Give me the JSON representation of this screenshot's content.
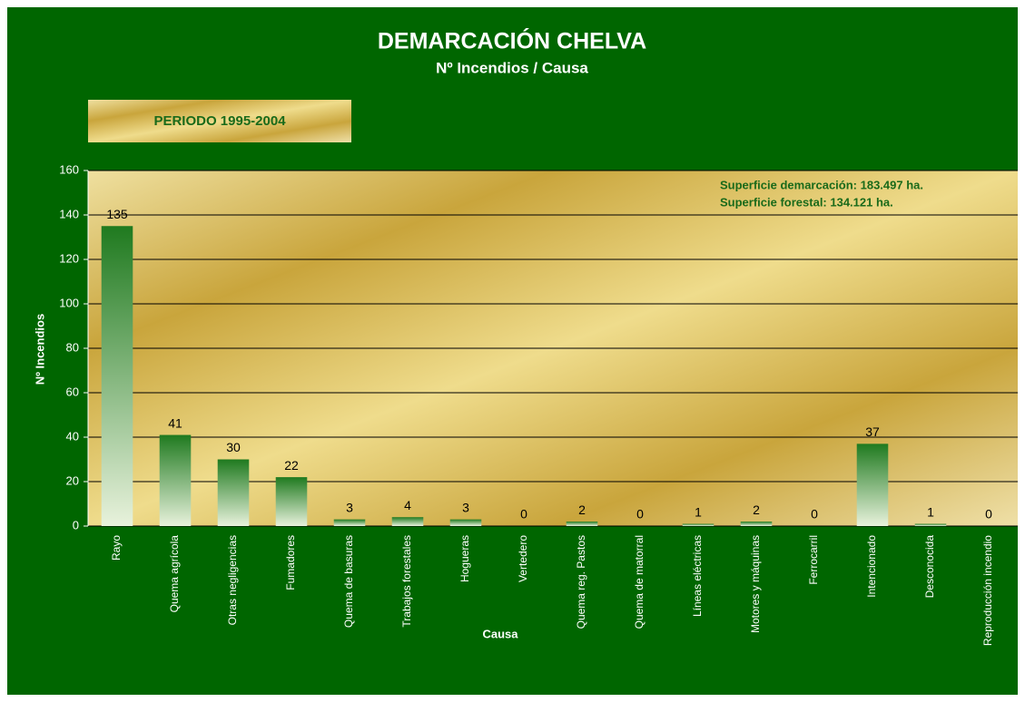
{
  "chart_data": {
    "type": "bar",
    "title": "DEMARCACIÓN  CHELVA",
    "subtitle": "Nº Incendios / Causa",
    "period": "PERIODO 1995-2004",
    "annotations": [
      "Superficie demarcación:  183.497 ha.",
      "Superficie forestal:  134.121 ha."
    ],
    "x_label": "Causa",
    "y_label": "Nº Incendios",
    "categories": [
      "Rayo",
      "Quema agrícola",
      "Otras negligencias",
      "Fumadores",
      "Quema de basuras",
      "Trabajos forestales",
      "Hogueras",
      "Vertedero",
      "Quema reg. Pastos",
      "Quema de matorral",
      "Líneas eléctricas",
      "Motores y máquinas",
      "Ferrocarril",
      "Intencionado",
      "Desconocida",
      "Reproducción incendio"
    ],
    "values": [
      135,
      41,
      30,
      22,
      3,
      4,
      3,
      0,
      2,
      0,
      1,
      2,
      0,
      37,
      1,
      0
    ],
    "color": "#1f7a1f",
    "ylim": [
      0,
      160
    ],
    "yticks": [
      0,
      20,
      40,
      60,
      80,
      100,
      120,
      140,
      160
    ],
    "grid": true
  }
}
